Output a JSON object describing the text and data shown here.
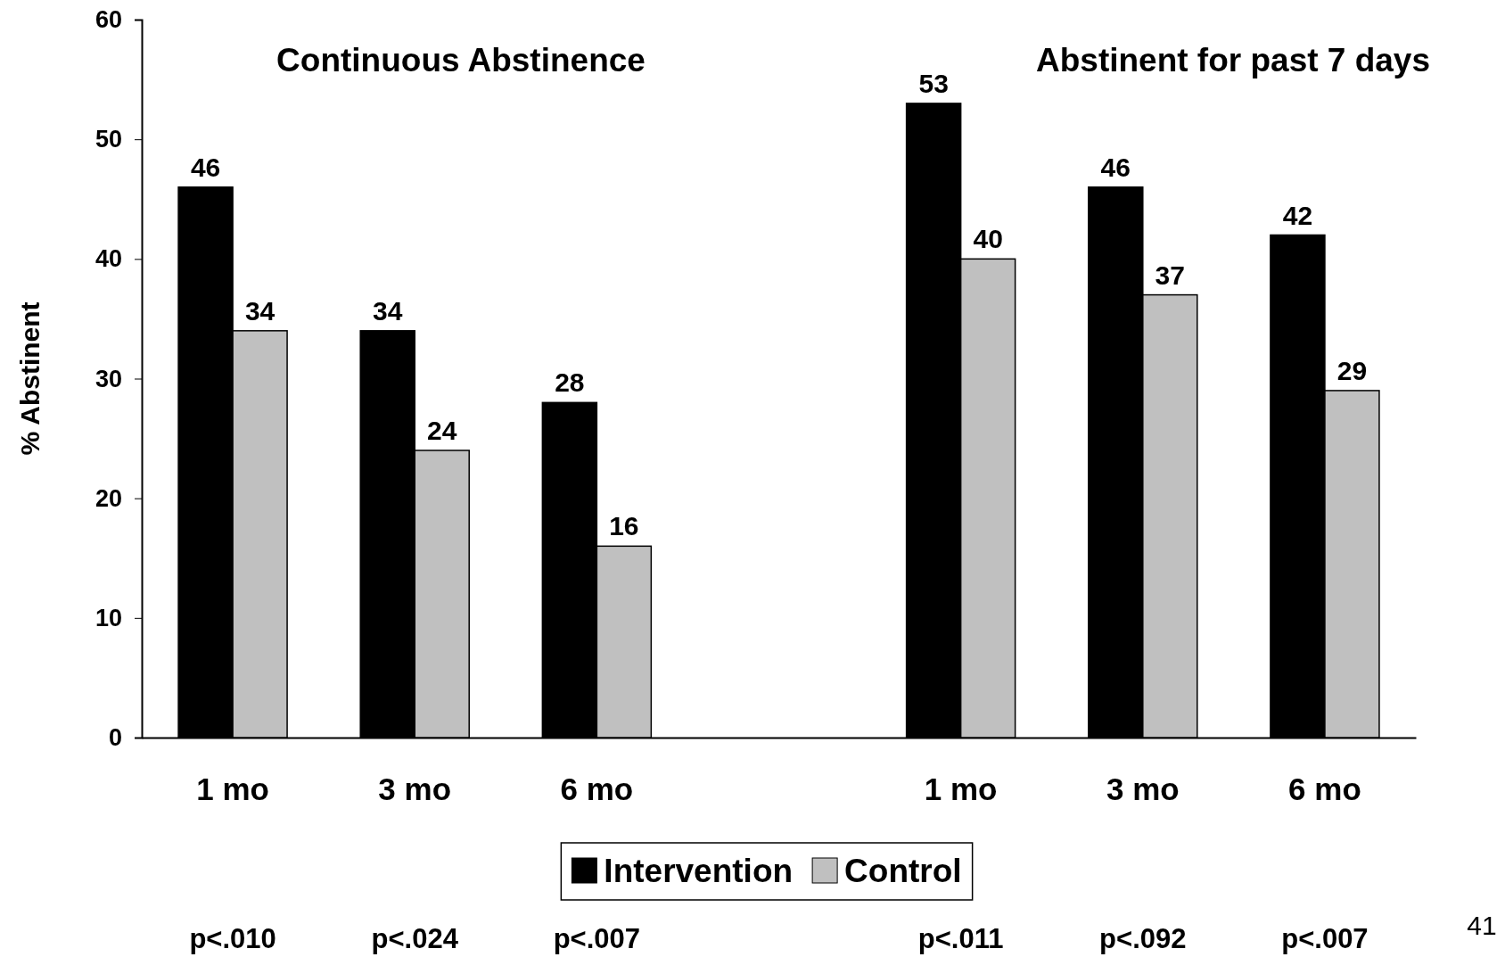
{
  "chart_data": {
    "type": "bar",
    "ylabel": "% Abstinent",
    "categories": [
      "1 mo",
      "3 mo",
      "6 mo",
      null,
      "1 mo",
      "3 mo",
      "6 mo"
    ],
    "series": [
      {
        "name": "Intervention",
        "color": "#000000",
        "values": [
          46,
          34,
          28,
          null,
          53,
          46,
          42
        ]
      },
      {
        "name": "Control",
        "color": "#c0c0c0",
        "values": [
          34,
          24,
          16,
          null,
          40,
          37,
          29
        ]
      }
    ],
    "ylim": [
      0,
      60
    ],
    "yticks": [
      0,
      10,
      20,
      30,
      40,
      50,
      60
    ],
    "grid": false,
    "legend": "bottom",
    "data_labels": true,
    "annotations": [
      "Continuous Abstinence",
      "Abstinent for past 7 days",
      "p<.010",
      "p<.024",
      "p<.007",
      "p<.011",
      "p<.092",
      "p<.007",
      "41"
    ]
  }
}
